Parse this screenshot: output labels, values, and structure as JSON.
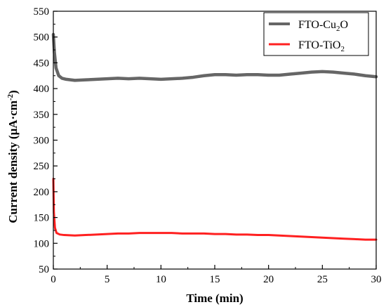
{
  "chart_data": {
    "type": "line",
    "xlabel": "Time (min)",
    "ylabel": {
      "main": "Current density (μA·cm",
      "sup": "-2",
      "close": ")"
    },
    "xlim": [
      0,
      30
    ],
    "ylim": [
      50,
      550
    ],
    "xticks": [
      0,
      5,
      10,
      15,
      20,
      25,
      30
    ],
    "yticks": [
      50,
      100,
      150,
      200,
      250,
      300,
      350,
      400,
      450,
      500,
      550
    ],
    "grid": false,
    "legend_position": "top-right",
    "series": [
      {
        "name": {
          "base": "FTO-Cu",
          "sub": "2",
          "tail": "O"
        },
        "color": "#666666",
        "x": [
          0,
          0.1,
          0.25,
          0.5,
          0.8,
          1.2,
          2,
          3,
          4,
          5,
          6,
          7,
          8,
          9,
          10,
          11,
          12,
          13,
          14,
          15,
          16,
          17,
          18,
          19,
          20,
          21,
          22,
          23,
          24,
          25,
          26,
          27,
          28,
          29,
          30
        ],
        "y": [
          505,
          470,
          440,
          425,
          420,
          418,
          416,
          417,
          418,
          419,
          420,
          419,
          420,
          419,
          418,
          419,
          420,
          422,
          425,
          427,
          427,
          426,
          427,
          427,
          426,
          426,
          428,
          430,
          432,
          433,
          432,
          430,
          428,
          425,
          423
        ]
      },
      {
        "name": {
          "base": "FTO-TiO",
          "sub": "2",
          "tail": ""
        },
        "color": "#ff2020",
        "x": [
          0,
          0.05,
          0.15,
          0.3,
          0.6,
          1,
          2,
          3,
          4,
          5,
          6,
          7,
          8,
          9,
          10,
          11,
          12,
          13,
          14,
          15,
          16,
          17,
          18,
          19,
          20,
          21,
          22,
          23,
          24,
          25,
          26,
          27,
          28,
          29,
          30
        ],
        "y": [
          225,
          160,
          130,
          120,
          117,
          116,
          115,
          116,
          117,
          118,
          119,
          119,
          120,
          120,
          120,
          120,
          119,
          119,
          119,
          118,
          118,
          117,
          117,
          116,
          116,
          115,
          114,
          113,
          112,
          111,
          110,
          109,
          108,
          107,
          107
        ]
      }
    ]
  }
}
